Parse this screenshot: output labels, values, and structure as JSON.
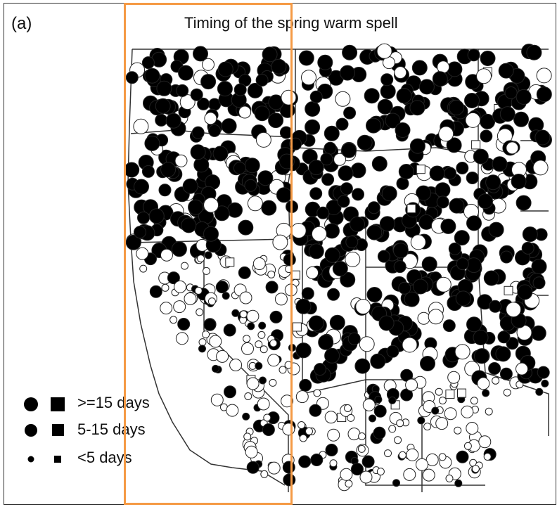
{
  "panel_label": "(a)",
  "title": "Timing of the spring warm spell",
  "legend": {
    "items": [
      {
        "label": ">=15 days",
        "size_class": "large"
      },
      {
        "label": "5-15 days",
        "size_class": "medium"
      },
      {
        "label": "<5 days",
        "size_class": "small"
      }
    ]
  },
  "colors": {
    "marker_filled": "#000000",
    "marker_open_stroke": "#222222",
    "state_border": "#333333",
    "highlight": "#f59a45"
  },
  "symbols": {
    "circle": "station-circle-icon",
    "square": "station-square-icon"
  }
}
